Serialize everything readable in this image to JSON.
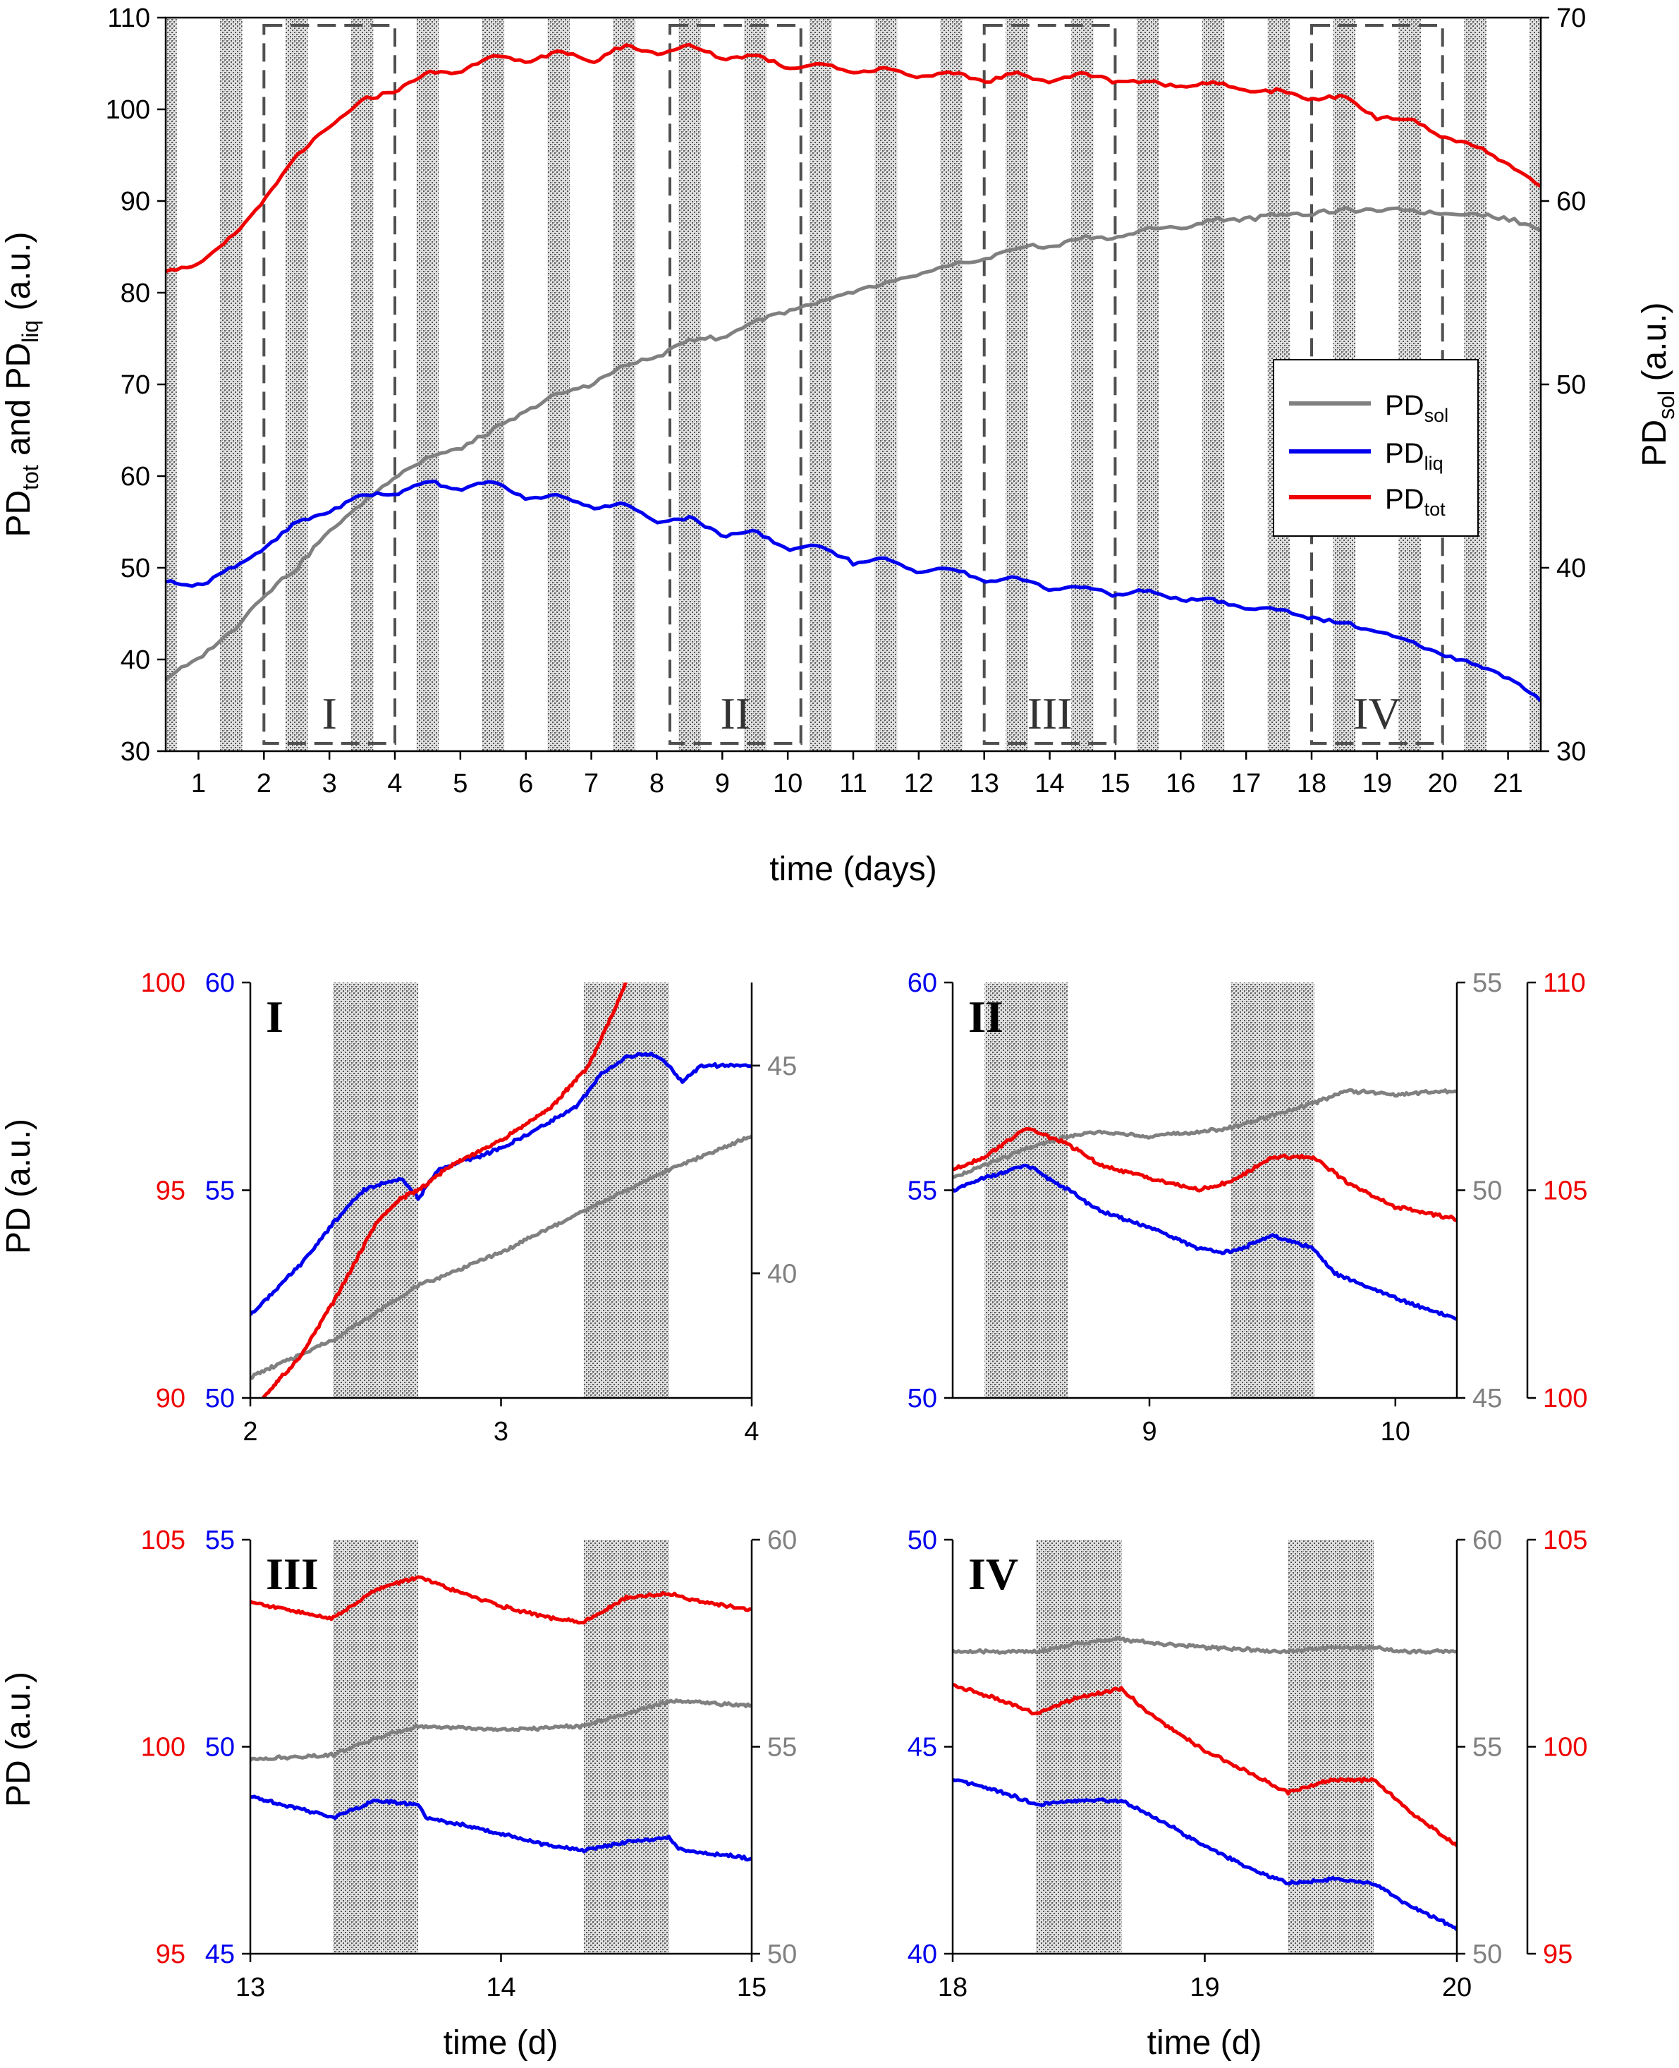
{
  "chart_data": [
    {
      "panel": "main",
      "type": "line",
      "xlabel": "time (days)",
      "ylabel_left_parts": [
        "PD",
        "tot",
        " and PD",
        "liq",
        " (a.u.)"
      ],
      "ylabel_right_parts": [
        "PD",
        "sol",
        " (a.u.)"
      ],
      "xlim": [
        0.5,
        21.5
      ],
      "ylim_left": [
        30,
        110
      ],
      "ylim_right": [
        30,
        70
      ],
      "xticks": [
        1,
        2,
        3,
        4,
        5,
        6,
        7,
        8,
        9,
        10,
        11,
        12,
        13,
        14,
        15,
        16,
        17,
        18,
        19,
        20,
        21
      ],
      "yticks_left": [
        30,
        40,
        50,
        60,
        70,
        80,
        90,
        100,
        110
      ],
      "yticks_right": [
        30,
        40,
        50,
        60,
        70
      ],
      "legend": [
        {
          "name": "PD",
          "sub": "sol",
          "color": "#808080"
        },
        {
          "name": "PD",
          "sub": "liq",
          "color": "#0000ee"
        },
        {
          "name": "PD",
          "sub": "tot",
          "color": "#ee0000"
        }
      ],
      "boxes": [
        {
          "label": "I",
          "x0": 2.0,
          "x1": 4.0
        },
        {
          "label": "II",
          "x0": 8.2,
          "x1": 10.2
        },
        {
          "label": "III",
          "x0": 13.0,
          "x1": 15.0
        },
        {
          "label": "IV",
          "x0": 18.0,
          "x1": 20.0
        }
      ],
      "series": [
        {
          "name": "PD_tot",
          "axis": "left",
          "color": "#ee0000",
          "x": [
            0.5,
            1,
            1.5,
            2,
            2.5,
            3,
            3.5,
            4,
            4.5,
            5,
            5.5,
            6,
            6.5,
            7,
            7.5,
            8,
            8.5,
            9,
            9.5,
            10,
            10.5,
            11,
            11.5,
            12,
            12.5,
            13,
            13.5,
            14,
            14.5,
            15,
            15.5,
            16,
            16.5,
            17,
            17.5,
            18,
            18.5,
            19,
            19.5,
            20,
            20.5,
            21,
            21.5
          ],
          "values": [
            82.5,
            83,
            86,
            90,
            95,
            98,
            101,
            102,
            104,
            104,
            106,
            105,
            106.5,
            105,
            107,
            106,
            107,
            105.5,
            106,
            104.5,
            105,
            104,
            104.5,
            103.5,
            104,
            103,
            104,
            103,
            104,
            103,
            103,
            102.5,
            103,
            102,
            102,
            101,
            101.5,
            99,
            99,
            97,
            96,
            94,
            91.5
          ]
        },
        {
          "name": "PD_liq",
          "axis": "left",
          "color": "#0000ee",
          "x": [
            0.5,
            1,
            1.5,
            2,
            2.5,
            3,
            3.5,
            4,
            4.5,
            5,
            5.5,
            6,
            6.5,
            7,
            7.5,
            8,
            8.5,
            9,
            9.5,
            10,
            10.5,
            11,
            11.5,
            12,
            12.5,
            13,
            13.5,
            14,
            14.5,
            15,
            15.5,
            16,
            16.5,
            17,
            17.5,
            18,
            18.5,
            19,
            19.5,
            20,
            20.5,
            21,
            21.5
          ],
          "values": [
            48.5,
            48,
            50,
            52,
            55,
            56,
            58,
            58,
            59.5,
            58.5,
            59.5,
            57.5,
            58,
            56.5,
            57,
            55,
            55.5,
            53.5,
            54,
            52,
            52.5,
            50.5,
            51,
            49.5,
            50,
            48.5,
            49,
            47.5,
            48,
            47,
            47.5,
            46.5,
            46.5,
            45.5,
            45.5,
            44.5,
            44,
            43,
            42,
            40.5,
            39.5,
            38,
            35.5
          ]
        },
        {
          "name": "PD_sol",
          "axis": "right",
          "color": "#808080",
          "x": [
            0.5,
            1,
            1.5,
            2,
            2.5,
            3,
            3.5,
            4,
            4.5,
            5,
            5.5,
            6,
            6.5,
            7,
            7.5,
            8,
            8.5,
            9,
            9.5,
            10,
            10.5,
            11,
            11.5,
            12,
            12.5,
            13,
            13.5,
            14,
            14.5,
            15,
            15.5,
            16,
            16.5,
            17,
            17.5,
            18,
            18.5,
            19,
            19.5,
            20,
            20.5,
            21,
            21.5
          ],
          "values": [
            34,
            35,
            36.5,
            38.5,
            40,
            42,
            43.5,
            45,
            46,
            46.5,
            47.5,
            48.5,
            49.5,
            50,
            51,
            51.5,
            52.5,
            52.5,
            53.5,
            54,
            54.5,
            55,
            55.5,
            56,
            56.5,
            56.8,
            57.5,
            57.5,
            58,
            58,
            58.5,
            58.5,
            59,
            59,
            59.3,
            59.3,
            59.5,
            59.5,
            59.5,
            59.3,
            59.3,
            59,
            58.5
          ]
        }
      ]
    },
    {
      "panel": "I",
      "type": "line",
      "label": "I",
      "ylabel": "PD (a.u.)",
      "xlabel": "",
      "xlim": [
        2,
        4
      ],
      "xticks": [
        2,
        3,
        4
      ],
      "left_outer": {
        "lim": [
          90,
          100
        ],
        "ticks": [
          90,
          95,
          100
        ],
        "color": "#ee0000"
      },
      "left_inner": {
        "lim": [
          50,
          60
        ],
        "ticks": [
          50,
          55,
          60
        ],
        "color": "#0000ee"
      },
      "right_inner": {
        "lim": [
          37,
          47
        ],
        "ticks": [
          40,
          45
        ],
        "color": "#808080"
      },
      "dark": [
        [
          2.33,
          2.67
        ],
        [
          3.33,
          3.67
        ]
      ],
      "series": [
        {
          "name": "PD_tot",
          "axis": "left_outer",
          "color": "#ee0000",
          "x": [
            2.05,
            2.2,
            2.35,
            2.5,
            2.6,
            2.67,
            2.8,
            3.0,
            3.2,
            3.35,
            3.45,
            3.5
          ],
          "values": [
            90,
            91,
            92.5,
            94.2,
            94.8,
            95,
            95.6,
            96.2,
            97,
            98,
            99.3,
            100
          ]
        },
        {
          "name": "PD_liq",
          "axis": "left_inner",
          "color": "#0000ee",
          "x": [
            2,
            2.2,
            2.33,
            2.45,
            2.6,
            2.67,
            2.75,
            3.0,
            3.3,
            3.4,
            3.5,
            3.6,
            3.67,
            3.72,
            3.8,
            4.0
          ],
          "values": [
            52,
            53.2,
            54.2,
            55,
            55.3,
            54.8,
            55.5,
            56,
            57,
            57.8,
            58.2,
            58.3,
            58,
            57.6,
            58,
            58
          ]
        },
        {
          "name": "PD_sol",
          "axis": "right_inner",
          "color": "#808080",
          "x": [
            2,
            2.33,
            2.67,
            3.0,
            3.33,
            3.67,
            4.0
          ],
          "values": [
            37.5,
            38.4,
            39.7,
            40.5,
            41.5,
            42.5,
            43.3
          ]
        }
      ]
    },
    {
      "panel": "II",
      "type": "line",
      "label": "II",
      "ylabel": "",
      "xlabel": "",
      "xlim": [
        8.2,
        10.25
      ],
      "xticks": [
        9,
        10
      ],
      "left_outer": {
        "lim": [
          50,
          60
        ],
        "ticks": [
          50,
          55,
          60
        ],
        "color": "#0000ee"
      },
      "right_inner": {
        "lim": [
          45,
          55
        ],
        "ticks": [
          45,
          50,
          55
        ],
        "color": "#808080"
      },
      "right_outer": {
        "lim": [
          100,
          110
        ],
        "ticks": [
          100,
          105,
          110
        ],
        "color": "#ee0000"
      },
      "dark": [
        [
          8.33,
          8.67
        ],
        [
          9.33,
          9.67
        ]
      ],
      "series": [
        {
          "name": "PD_tot",
          "axis": "right_outer",
          "color": "#ee0000",
          "x": [
            8.2,
            8.33,
            8.5,
            8.67,
            8.8,
            9.0,
            9.2,
            9.33,
            9.5,
            9.67,
            9.8,
            10.0,
            10.25
          ],
          "values": [
            105.5,
            105.8,
            106.5,
            106.1,
            105.6,
            105.3,
            105,
            105.2,
            105.8,
            105.8,
            105.2,
            104.6,
            104.3
          ]
        },
        {
          "name": "PD_liq",
          "axis": "left_outer",
          "color": "#0000ee",
          "x": [
            8.2,
            8.33,
            8.5,
            8.67,
            8.8,
            9.0,
            9.2,
            9.33,
            9.5,
            9.67,
            9.75,
            10.0,
            10.25
          ],
          "values": [
            55,
            55.3,
            55.6,
            55,
            54.5,
            54.1,
            53.6,
            53.5,
            53.9,
            53.6,
            53,
            52.4,
            51.9
          ]
        },
        {
          "name": "PD_sol",
          "axis": "right_inner",
          "color": "#808080",
          "x": [
            8.2,
            8.33,
            8.5,
            8.67,
            8.8,
            9.0,
            9.2,
            9.33,
            9.5,
            9.67,
            9.8,
            10.0,
            10.25
          ],
          "values": [
            50.3,
            50.6,
            51,
            51.3,
            51.4,
            51.3,
            51.4,
            51.5,
            51.8,
            52.1,
            52.4,
            52.3,
            52.4
          ]
        }
      ]
    },
    {
      "panel": "III",
      "type": "line",
      "label": "III",
      "ylabel": "PD (a.u.)",
      "xlabel": "time (d)",
      "xlim": [
        13,
        15
      ],
      "xticks": [
        13,
        14,
        15
      ],
      "left_outer": {
        "lim": [
          95,
          105
        ],
        "ticks": [
          95,
          100,
          105
        ],
        "color": "#ee0000"
      },
      "left_inner": {
        "lim": [
          45,
          55
        ],
        "ticks": [
          45,
          50,
          55
        ],
        "color": "#0000ee"
      },
      "right_inner": {
        "lim": [
          50,
          60
        ],
        "ticks": [
          50,
          55,
          60
        ],
        "color": "#808080"
      },
      "dark": [
        [
          13.33,
          13.67
        ],
        [
          14.33,
          14.67
        ]
      ],
      "series": [
        {
          "name": "PD_tot",
          "axis": "left_outer",
          "color": "#ee0000",
          "x": [
            13,
            13.15,
            13.33,
            13.5,
            13.67,
            13.8,
            14.0,
            14.2,
            14.33,
            14.5,
            14.67,
            14.8,
            15.0
          ],
          "values": [
            103.5,
            103.3,
            103.1,
            103.8,
            104.1,
            103.8,
            103.4,
            103.1,
            103,
            103.6,
            103.7,
            103.5,
            103.3
          ]
        },
        {
          "name": "PD_liq",
          "axis": "left_inner",
          "color": "#0000ee",
          "x": [
            13,
            13.2,
            13.33,
            13.5,
            13.67,
            13.7,
            14.0,
            14.2,
            14.33,
            14.5,
            14.67,
            14.72,
            15.0
          ],
          "values": [
            48.8,
            48.5,
            48.3,
            48.7,
            48.6,
            48.3,
            47.9,
            47.6,
            47.5,
            47.7,
            47.8,
            47.5,
            47.3
          ]
        },
        {
          "name": "PD_sol",
          "axis": "right_inner",
          "color": "#808080",
          "x": [
            13,
            13.33,
            13.5,
            13.67,
            14.0,
            14.33,
            14.5,
            14.67,
            15.0
          ],
          "values": [
            54.7,
            54.8,
            55.2,
            55.5,
            55.4,
            55.5,
            55.8,
            56.1,
            56.0
          ]
        }
      ]
    },
    {
      "panel": "IV",
      "type": "line",
      "label": "IV",
      "ylabel": "",
      "xlabel": "time (d)",
      "xlim": [
        18,
        20
      ],
      "xticks": [
        18,
        19,
        20
      ],
      "left_outer": {
        "lim": [
          40,
          50
        ],
        "ticks": [
          40,
          45,
          50
        ],
        "color": "#0000ee"
      },
      "right_inner": {
        "lim": [
          50,
          60
        ],
        "ticks": [
          50,
          55,
          60
        ],
        "color": "#808080"
      },
      "right_outer": {
        "lim": [
          95,
          105
        ],
        "ticks": [
          95,
          100,
          105
        ],
        "color": "#ee0000"
      },
      "dark": [
        [
          18.33,
          18.67
        ],
        [
          19.33,
          19.67
        ]
      ],
      "series": [
        {
          "name": "PD_tot",
          "axis": "right_outer",
          "color": "#ee0000",
          "x": [
            18,
            18.2,
            18.33,
            18.5,
            18.67,
            18.8,
            19.0,
            19.2,
            19.33,
            19.5,
            19.67,
            19.8,
            20.0
          ],
          "values": [
            101.5,
            101.1,
            100.8,
            101.2,
            101.4,
            100.7,
            99.9,
            99.3,
            98.9,
            99.2,
            99.2,
            98.5,
            97.6
          ]
        },
        {
          "name": "PD_liq",
          "axis": "left_outer",
          "color": "#0000ee",
          "x": [
            18,
            18.2,
            18.33,
            18.5,
            18.67,
            18.8,
            19.0,
            19.2,
            19.33,
            19.5,
            19.67,
            19.8,
            20.0
          ],
          "values": [
            44.2,
            43.9,
            43.6,
            43.7,
            43.7,
            43.3,
            42.6,
            42,
            41.7,
            41.8,
            41.7,
            41.2,
            40.6
          ]
        },
        {
          "name": "PD_sol",
          "axis": "right_inner",
          "color": "#808080",
          "x": [
            18,
            18.33,
            18.5,
            18.67,
            18.8,
            19.0,
            19.33,
            19.5,
            19.67,
            19.8,
            20.0
          ],
          "values": [
            57.3,
            57.3,
            57.5,
            57.6,
            57.5,
            57.4,
            57.3,
            57.4,
            57.4,
            57.3,
            57.3
          ]
        }
      ]
    }
  ]
}
